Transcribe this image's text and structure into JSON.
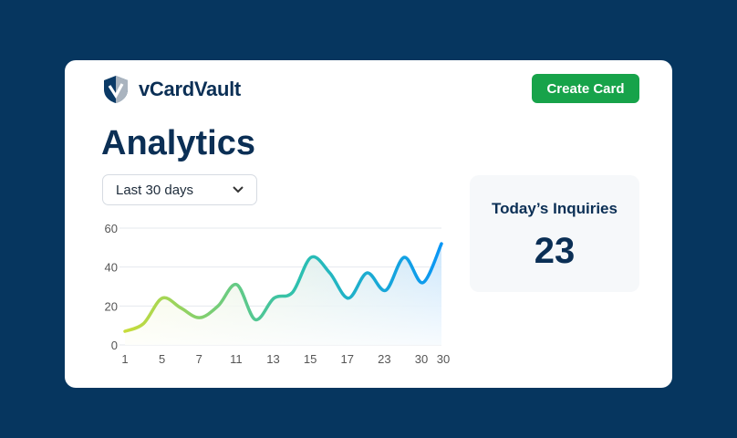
{
  "app": {
    "name": "vCardVault",
    "create_label": "Create Card"
  },
  "page": {
    "title": "Analytics"
  },
  "filter": {
    "selected": "Last 30 days"
  },
  "stat": {
    "label": "Today’s Inquiries",
    "value": "23"
  },
  "colors": {
    "background": "#06365f",
    "primary": "#0b2f55",
    "create": "#17a34a",
    "line_start": "#c8dc3a",
    "line_end": "#0a96f5"
  },
  "chart_data": {
    "type": "area",
    "title": "",
    "xlabel": "",
    "ylabel": "",
    "ylim": [
      0,
      60
    ],
    "yticks": [
      0,
      20,
      40,
      60
    ],
    "grid": true,
    "xtick_labels": [
      "1",
      "5",
      "7",
      "11",
      "13",
      "15",
      "17",
      "23",
      "30",
      "30"
    ],
    "values": [
      7,
      11,
      24,
      19,
      14,
      20,
      31,
      13,
      24,
      27,
      45,
      37,
      24,
      37,
      28,
      45,
      32,
      52
    ]
  }
}
